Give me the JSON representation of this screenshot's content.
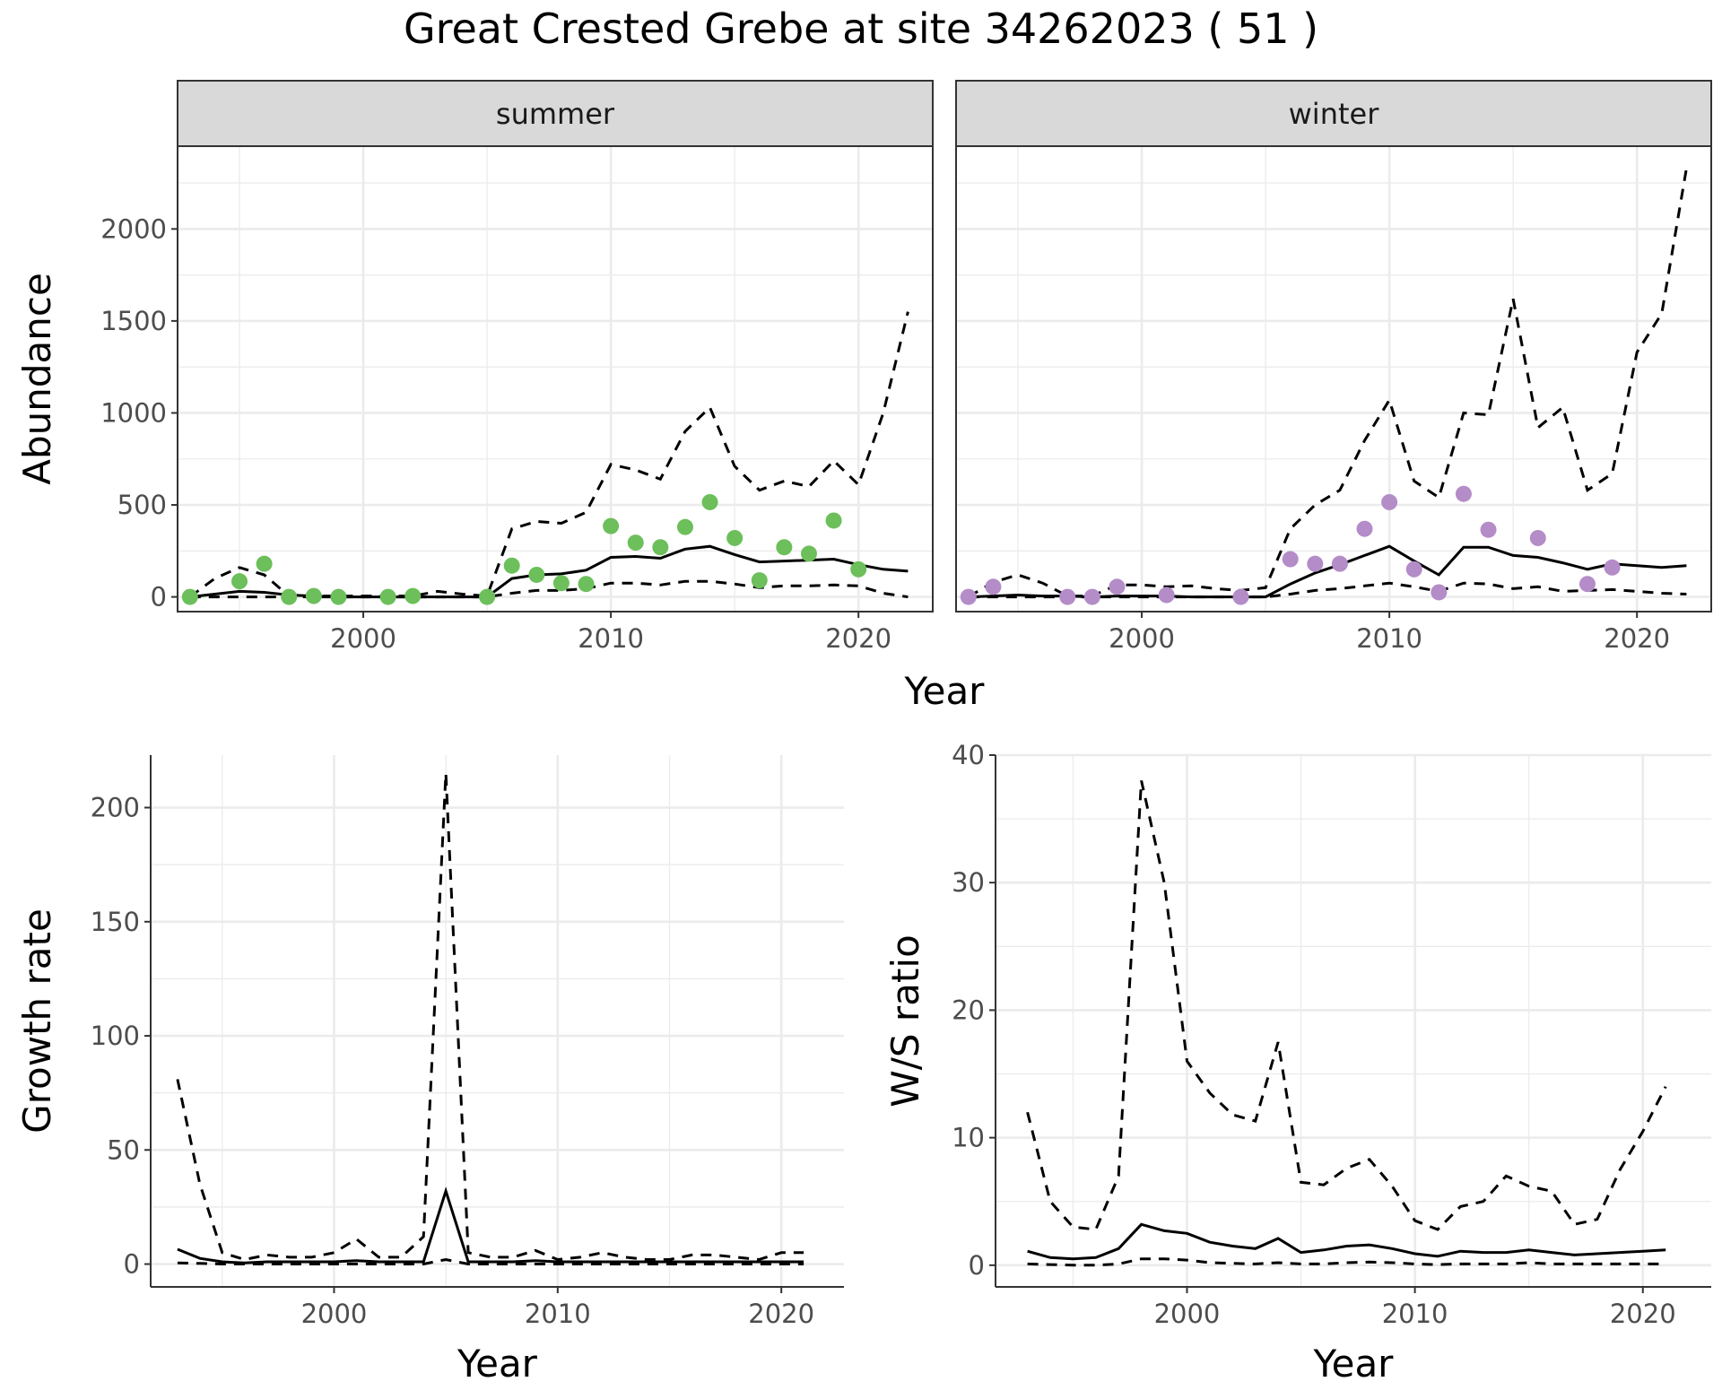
{
  "figure": {
    "title": "Great Crested Grebe at site 34262023 ( 51 )"
  },
  "chart_data": [
    {
      "type": "line",
      "panel": "abundance",
      "xlabel": "Year",
      "ylabel": "Abundance",
      "xlim": [
        1992.5,
        2023
      ],
      "ylim": [
        -80,
        2450
      ],
      "xticks": [
        2000,
        2010,
        2020
      ],
      "yticks": [
        0,
        500,
        1000,
        1500,
        2000
      ],
      "facets": [
        {
          "name": "summer",
          "point_color": "#6cbf5a",
          "points": [
            [
              1993,
              0
            ],
            [
              1995,
              85
            ],
            [
              1996,
              180
            ],
            [
              1997,
              0
            ],
            [
              1998,
              5
            ],
            [
              1999,
              0
            ],
            [
              2001,
              0
            ],
            [
              2002,
              5
            ],
            [
              2005,
              0
            ],
            [
              2006,
              170
            ],
            [
              2007,
              120
            ],
            [
              2008,
              75
            ],
            [
              2009,
              70
            ],
            [
              2010,
              385
            ],
            [
              2011,
              295
            ],
            [
              2012,
              270
            ],
            [
              2013,
              380
            ],
            [
              2014,
              515
            ],
            [
              2015,
              320
            ],
            [
              2016,
              90
            ],
            [
              2017,
              270
            ],
            [
              2018,
              235
            ],
            [
              2019,
              415
            ],
            [
              2020,
              150
            ]
          ],
          "x": [
            1993,
            1994,
            1995,
            1996,
            1997,
            1998,
            1999,
            2000,
            2001,
            2002,
            2003,
            2004,
            2005,
            2006,
            2007,
            2008,
            2009,
            2010,
            2011,
            2012,
            2013,
            2014,
            2015,
            2016,
            2017,
            2018,
            2019,
            2020,
            2021,
            2022
          ],
          "mean": [
            0,
            15,
            30,
            25,
            10,
            5,
            0,
            0,
            0,
            0,
            0,
            0,
            0,
            100,
            120,
            125,
            145,
            215,
            220,
            210,
            260,
            275,
            230,
            190,
            195,
            200,
            205,
            175,
            150,
            140
          ],
          "upper": [
            0,
            100,
            160,
            120,
            5,
            5,
            5,
            5,
            5,
            5,
            30,
            15,
            5,
            370,
            410,
            400,
            460,
            720,
            690,
            640,
            900,
            1030,
            710,
            580,
            630,
            600,
            740,
            610,
            1000,
            1550
          ],
          "lower": [
            0,
            0,
            0,
            0,
            0,
            0,
            0,
            0,
            0,
            0,
            0,
            0,
            0,
            20,
            35,
            35,
            45,
            75,
            75,
            65,
            85,
            85,
            70,
            50,
            60,
            60,
            65,
            60,
            20,
            0
          ]
        },
        {
          "name": "winter",
          "point_color": "#b48cc8",
          "points": [
            [
              1993,
              0
            ],
            [
              1994,
              55
            ],
            [
              1997,
              0
            ],
            [
              1998,
              0
            ],
            [
              1999,
              55
            ],
            [
              2001,
              10
            ],
            [
              2004,
              0
            ],
            [
              2006,
              205
            ],
            [
              2007,
              180
            ],
            [
              2008,
              180
            ],
            [
              2009,
              370
            ],
            [
              2010,
              515
            ],
            [
              2011,
              150
            ],
            [
              2012,
              25
            ],
            [
              2013,
              560
            ],
            [
              2014,
              365
            ],
            [
              2016,
              320
            ],
            [
              2018,
              70
            ],
            [
              2019,
              160
            ]
          ],
          "x": [
            1993,
            1994,
            1995,
            1996,
            1997,
            1998,
            1999,
            2000,
            2001,
            2002,
            2003,
            2004,
            2005,
            2006,
            2007,
            2008,
            2009,
            2010,
            2011,
            2012,
            2013,
            2014,
            2015,
            2016,
            2017,
            2018,
            2019,
            2020,
            2021,
            2022
          ],
          "mean": [
            0,
            5,
            10,
            5,
            5,
            0,
            5,
            5,
            5,
            0,
            0,
            0,
            0,
            70,
            130,
            175,
            225,
            275,
            195,
            120,
            270,
            270,
            225,
            215,
            185,
            150,
            180,
            170,
            160,
            170
          ],
          "upper": [
            0,
            80,
            120,
            75,
            5,
            5,
            65,
            65,
            55,
            60,
            45,
            35,
            50,
            370,
            500,
            580,
            850,
            1070,
            630,
            540,
            1000,
            990,
            1620,
            920,
            1030,
            580,
            670,
            1330,
            1540,
            2330
          ],
          "lower": [
            0,
            0,
            0,
            0,
            0,
            0,
            0,
            0,
            0,
            0,
            0,
            0,
            0,
            15,
            35,
            45,
            60,
            75,
            55,
            30,
            75,
            70,
            45,
            55,
            30,
            35,
            40,
            30,
            20,
            15
          ]
        }
      ]
    },
    {
      "type": "line",
      "panel": "growth",
      "xlabel": "Year",
      "ylabel": "Growth rate",
      "xlim": [
        1991.8,
        2022.8
      ],
      "ylim": [
        -10,
        223
      ],
      "xticks": [
        2000,
        2010,
        2020
      ],
      "yticks": [
        0,
        50,
        100,
        150,
        200
      ],
      "x": [
        1993,
        1994,
        1995,
        1996,
        1997,
        1998,
        1999,
        2000,
        2001,
        2002,
        2003,
        2004,
        2005,
        2006,
        2007,
        2008,
        2009,
        2010,
        2011,
        2012,
        2013,
        2014,
        2015,
        2016,
        2017,
        2018,
        2019,
        2020,
        2021
      ],
      "mean": [
        6.5,
        2.5,
        1,
        0.5,
        1,
        1,
        1,
        1,
        1.5,
        1,
        1,
        1,
        32,
        1,
        1,
        1,
        1.5,
        1,
        1,
        1,
        1,
        1,
        1,
        1,
        1,
        1,
        1,
        1,
        1
      ],
      "upper": [
        81,
        35,
        5,
        2,
        4,
        3,
        3,
        5,
        11,
        3,
        3,
        12,
        215,
        5,
        3,
        3,
        6,
        2,
        3,
        5,
        3,
        2,
        2,
        4,
        4,
        3,
        2,
        5,
        5
      ],
      "lower": [
        0.5,
        0.3,
        0,
        0,
        0,
        0,
        0,
        0,
        0,
        0,
        0,
        0,
        2,
        0,
        0,
        0,
        0,
        0,
        0,
        0,
        0,
        0,
        0,
        0,
        0,
        0,
        0,
        0,
        0
      ]
    },
    {
      "type": "line",
      "panel": "ratio",
      "xlabel": "Year",
      "ylabel": "W/S ratio",
      "xlim": [
        1991.6,
        2023
      ],
      "ylim": [
        -1.7,
        40
      ],
      "xticks": [
        2000,
        2010,
        2020
      ],
      "yticks": [
        0,
        10,
        20,
        30,
        40
      ],
      "x": [
        1993,
        1994,
        1995,
        1996,
        1997,
        1998,
        1999,
        2000,
        2001,
        2002,
        2003,
        2004,
        2005,
        2006,
        2007,
        2008,
        2009,
        2010,
        2011,
        2012,
        2013,
        2014,
        2015,
        2016,
        2017,
        2018,
        2019,
        2020,
        2021
      ],
      "mean": [
        1.1,
        0.6,
        0.5,
        0.6,
        1.3,
        3.2,
        2.7,
        2.5,
        1.8,
        1.5,
        1.3,
        2.1,
        1.0,
        1.2,
        1.5,
        1.6,
        1.3,
        0.9,
        0.7,
        1.1,
        1.0,
        1.0,
        1.2,
        1.0,
        0.8,
        0.9,
        1.0,
        1.1,
        1.2
      ],
      "upper": [
        12,
        5,
        3,
        2.8,
        7,
        38,
        30,
        16,
        13.5,
        11.8,
        11.3,
        17.5,
        6.5,
        6.3,
        7.6,
        8.3,
        6.2,
        3.5,
        2.8,
        4.6,
        5,
        7,
        6.2,
        5.8,
        3.2,
        3.6,
        7.5,
        10.5,
        14
      ],
      "lower": [
        0.1,
        0.05,
        0,
        0,
        0.1,
        0.5,
        0.5,
        0.4,
        0.2,
        0.15,
        0.1,
        0.2,
        0.1,
        0.1,
        0.2,
        0.25,
        0.2,
        0.1,
        0.05,
        0.1,
        0.1,
        0.1,
        0.2,
        0.1,
        0.1,
        0.1,
        0.1,
        0.1,
        0.1
      ]
    }
  ]
}
